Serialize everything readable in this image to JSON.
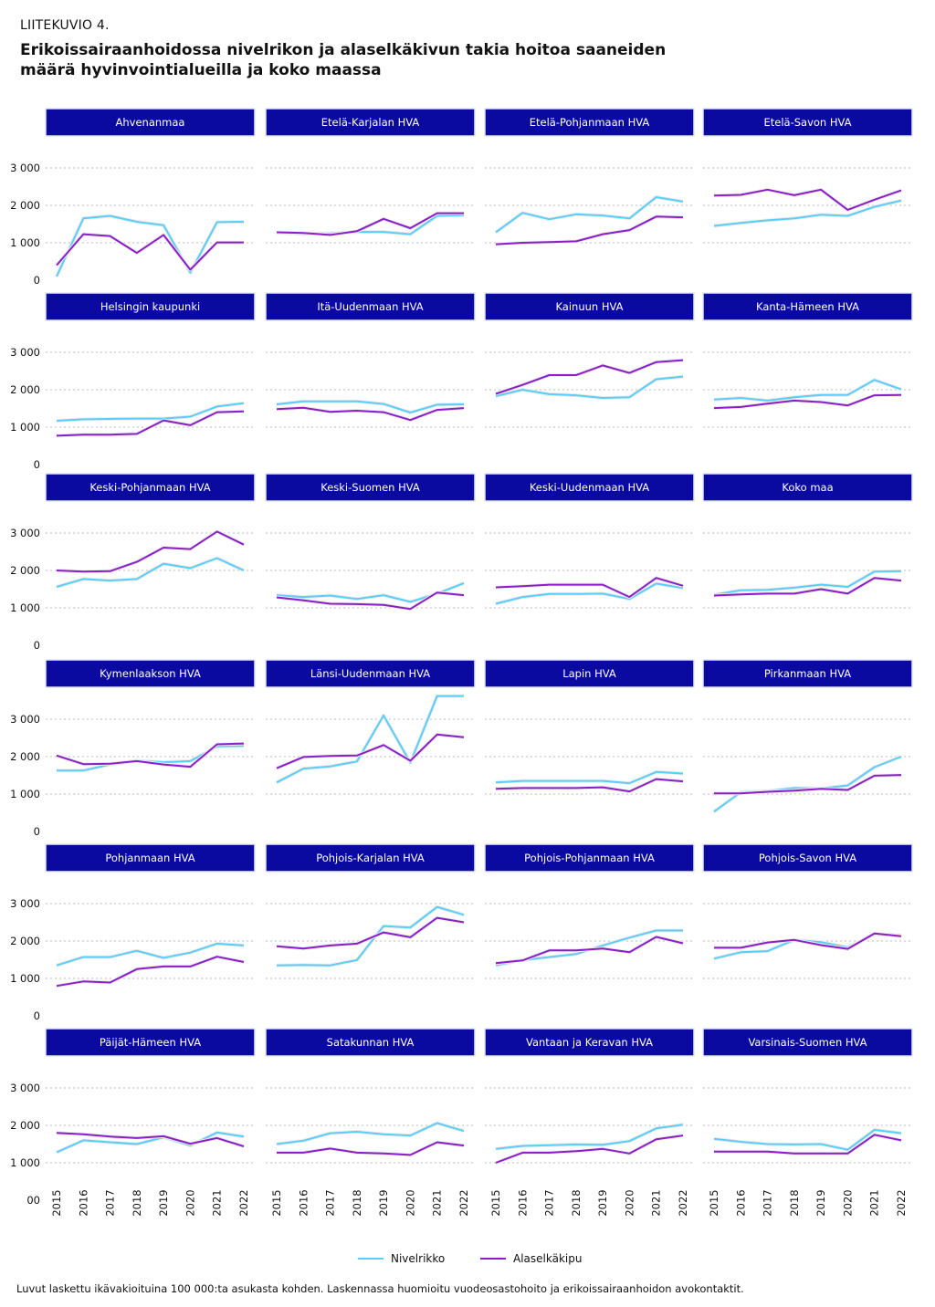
{
  "header": {
    "supertitle": "LIITEKUVIO 4.",
    "title": "Erikoissairaanhoidossa nivelrikon ja alaselkäkivun takia hoitoa saaneiden määrä hyvinvointialueilla ja koko maassa"
  },
  "footnote": "Luvut laskettu ikävakioituina 100 000:ta asukasta kohden. Laskennassa huomioitu vuodeosastohoito ja erikoissairaanhoidon avokontaktit.",
  "colors": {
    "strip_bg": "#0a0aa0",
    "nivelrikko": "#5bcdf7",
    "alaselkakipu": "#8a1fc7",
    "grid": "#bdbdbd"
  },
  "chart_data": {
    "type": "line",
    "layout": "facet-grid",
    "years": [
      "2015",
      "2016",
      "2017",
      "2018",
      "2019",
      "2020",
      "2021",
      "2022"
    ],
    "y_ticks": [
      "0",
      "1 000",
      "2 000",
      "3 000"
    ],
    "y_ticks_last_row": [
      "00",
      "1 000",
      "2 000",
      "3 000"
    ],
    "ylim": [
      0,
      3000
    ],
    "legend": [
      {
        "key": "nivelrikko",
        "label": "Nivelrikko"
      },
      {
        "key": "alaselkakipu",
        "label": "Alaselkäkipu"
      }
    ],
    "panels": [
      {
        "name": "Ahvenanmaa",
        "nivelrikko": [
          100,
          1650,
          1720,
          1560,
          1470,
          200,
          1550,
          1560
        ],
        "alaselkakipu": [
          400,
          1230,
          1180,
          730,
          1210,
          280,
          1010,
          1010
        ]
      },
      {
        "name": "Etelä-Karjalan HVA",
        "nivelrikko": [
          1270,
          1240,
          1250,
          1290,
          1290,
          1230,
          1720,
          1740
        ],
        "alaselkakipu": [
          1280,
          1260,
          1210,
          1310,
          1640,
          1390,
          1790,
          1790
        ]
      },
      {
        "name": "Etelä-Pohjanmaan HVA",
        "nivelrikko": [
          1280,
          1800,
          1630,
          1760,
          1730,
          1650,
          2220,
          2100
        ],
        "alaselkakipu": [
          960,
          1000,
          1020,
          1040,
          1230,
          1340,
          1700,
          1680
        ]
      },
      {
        "name": "Etelä-Savon HVA",
        "nivelrikko": [
          1450,
          1530,
          1600,
          1650,
          1750,
          1720,
          1960,
          2130
        ],
        "alaselkakipu": [
          2260,
          2280,
          2420,
          2270,
          2420,
          1880,
          2150,
          2400
        ]
      },
      {
        "name": "Helsingin kaupunki",
        "nivelrikko": [
          1170,
          1210,
          1220,
          1230,
          1230,
          1280,
          1550,
          1640
        ],
        "alaselkakipu": [
          770,
          800,
          800,
          820,
          1180,
          1050,
          1400,
          1420
        ]
      },
      {
        "name": "Itä-Uudenmaan HVA",
        "nivelrikko": [
          1610,
          1690,
          1690,
          1690,
          1620,
          1390,
          1600,
          1610
        ],
        "alaselkakipu": [
          1480,
          1520,
          1410,
          1440,
          1400,
          1190,
          1460,
          1510
        ]
      },
      {
        "name": "Kainuun HVA",
        "nivelrikko": [
          1830,
          2000,
          1880,
          1850,
          1780,
          1800,
          2280,
          2350
        ],
        "alaselkakipu": [
          1890,
          2130,
          2390,
          2390,
          2650,
          2450,
          2740,
          2790
        ]
      },
      {
        "name": "Kanta-Hämeen HVA",
        "nivelrikko": [
          1740,
          1780,
          1710,
          1800,
          1860,
          1860,
          2260,
          2010
        ],
        "alaselkakipu": [
          1510,
          1540,
          1630,
          1710,
          1670,
          1580,
          1850,
          1860
        ]
      },
      {
        "name": "Keski-Pohjanmaan HVA",
        "nivelrikko": [
          1560,
          1770,
          1730,
          1770,
          2180,
          2060,
          2330,
          2000
        ],
        "alaselkakipu": [
          2000,
          1970,
          1980,
          2230,
          2610,
          2570,
          3040,
          2690
        ]
      },
      {
        "name": "Keski-Suomen HVA",
        "nivelrikko": [
          1340,
          1290,
          1330,
          1240,
          1340,
          1160,
          1380,
          1660
        ],
        "alaselkakipu": [
          1280,
          1200,
          1110,
          1100,
          1080,
          970,
          1410,
          1340
        ]
      },
      {
        "name": "Keski-Uudenmaan HVA",
        "nivelrikko": [
          1110,
          1290,
          1370,
          1370,
          1380,
          1240,
          1650,
          1530
        ],
        "alaselkakipu": [
          1550,
          1580,
          1620,
          1620,
          1620,
          1290,
          1800,
          1590
        ]
      },
      {
        "name": "Koko maa",
        "nivelrikko": [
          1350,
          1470,
          1480,
          1540,
          1620,
          1560,
          1970,
          1980
        ],
        "alaselkakipu": [
          1330,
          1360,
          1380,
          1380,
          1500,
          1380,
          1800,
          1730
        ]
      },
      {
        "name": "Kymenlaakson HVA",
        "nivelrikko": [
          1630,
          1630,
          1790,
          1890,
          1850,
          1880,
          2270,
          2290
        ],
        "alaselkakipu": [
          2030,
          1800,
          1810,
          1880,
          1790,
          1730,
          2330,
          2350
        ]
      },
      {
        "name": "Länsi-Uudenmaan HVA",
        "nivelrikko": [
          1310,
          1680,
          1740,
          1870,
          3100,
          1840,
          3620,
          3620
        ],
        "alaselkakipu": [
          1690,
          1990,
          2020,
          2030,
          2310,
          1890,
          2590,
          2520
        ]
      },
      {
        "name": "Lapin HVA",
        "nivelrikko": [
          1310,
          1350,
          1350,
          1350,
          1350,
          1290,
          1590,
          1550
        ],
        "alaselkakipu": [
          1140,
          1160,
          1160,
          1160,
          1180,
          1070,
          1400,
          1340
        ]
      },
      {
        "name": "Pirkanmaan HVA",
        "nivelrikko": [
          530,
          1050,
          1080,
          1160,
          1150,
          1230,
          1720,
          2000
        ],
        "alaselkakipu": [
          1020,
          1020,
          1060,
          1090,
          1140,
          1110,
          1490,
          1510
        ]
      },
      {
        "name": "Pohjanmaan HVA",
        "nivelrikko": [
          1350,
          1570,
          1570,
          1740,
          1550,
          1690,
          1930,
          1880
        ],
        "alaselkakipu": [
          800,
          920,
          890,
          1250,
          1320,
          1320,
          1580,
          1440
        ]
      },
      {
        "name": "Pohjois-Karjalan HVA",
        "nivelrikko": [
          1350,
          1360,
          1350,
          1490,
          2400,
          2360,
          2910,
          2700
        ],
        "alaselkakipu": [
          1860,
          1800,
          1880,
          1930,
          2230,
          2100,
          2620,
          2500
        ]
      },
      {
        "name": "Pohjois-Pohjanmaan HVA",
        "nivelrikko": [
          1350,
          1490,
          1570,
          1650,
          1880,
          2090,
          2280,
          2280
        ],
        "alaselkakipu": [
          1410,
          1480,
          1750,
          1750,
          1800,
          1700,
          2110,
          1940
        ]
      },
      {
        "name": "Pohjois-Savon HVA",
        "nivelrikko": [
          1530,
          1700,
          1730,
          2030,
          1970,
          1830,
          2180,
          2150
        ],
        "alaselkakipu": [
          1820,
          1820,
          1960,
          2030,
          1890,
          1790,
          2200,
          2130
        ]
      },
      {
        "name": "Päijät-Hämeen HVA",
        "nivelrikko": [
          1280,
          1600,
          1550,
          1500,
          1680,
          1460,
          1810,
          1700
        ],
        "alaselkakipu": [
          1800,
          1760,
          1700,
          1660,
          1710,
          1510,
          1660,
          1440
        ]
      },
      {
        "name": "Satakunnan HVA",
        "nivelrikko": [
          1500,
          1590,
          1790,
          1830,
          1760,
          1730,
          2060,
          1850
        ],
        "alaselkakipu": [
          1270,
          1270,
          1380,
          1270,
          1250,
          1210,
          1550,
          1460
        ]
      },
      {
        "name": "Vantaan ja Keravan HVA",
        "nivelrikko": [
          1370,
          1450,
          1470,
          1490,
          1480,
          1580,
          1920,
          2020
        ],
        "alaselkakipu": [
          1000,
          1270,
          1270,
          1310,
          1370,
          1250,
          1630,
          1730
        ]
      },
      {
        "name": "Varsinais-Suomen HVA",
        "nivelrikko": [
          1640,
          1560,
          1500,
          1490,
          1500,
          1350,
          1880,
          1790
        ],
        "alaselkakipu": [
          1300,
          1300,
          1300,
          1250,
          1250,
          1250,
          1750,
          1600
        ]
      }
    ]
  }
}
